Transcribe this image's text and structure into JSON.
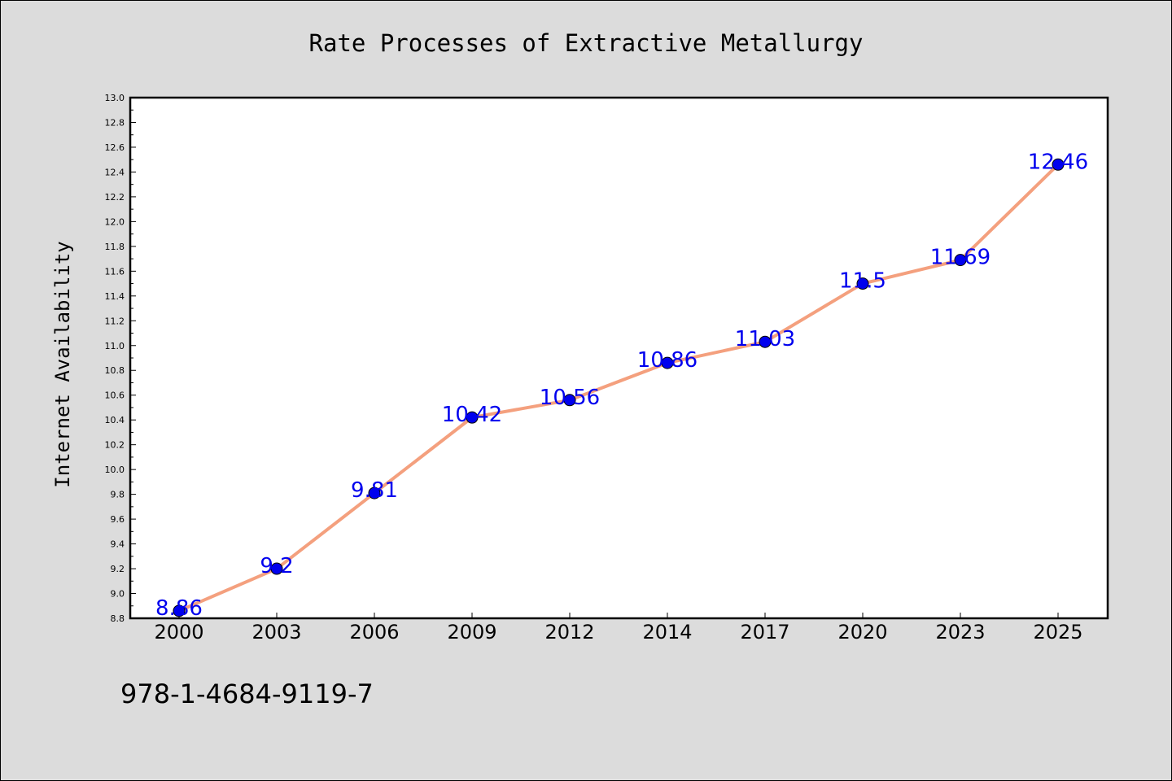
{
  "chart_data": {
    "type": "line",
    "title": "Rate Processes of Extractive Metallurgy",
    "xlabel": "",
    "ylabel": "Internet Availability",
    "categories": [
      "2000",
      "2003",
      "2006",
      "2009",
      "2012",
      "2014",
      "2017",
      "2020",
      "2023",
      "2025"
    ],
    "series": [
      {
        "values": [
          8.86,
          9.2,
          9.81,
          10.42,
          10.56,
          10.86,
          11.03,
          11.5,
          11.69,
          12.46
        ],
        "labels": [
          "8.86",
          "9.2",
          "9.81",
          "10.42",
          "10.56",
          "10.86",
          "11.03",
          "11.5",
          "11.69",
          "12.46"
        ],
        "line_color": "#f4a07e",
        "marker_color": "#0000ee",
        "label_color": "#0000ee"
      }
    ],
    "ylim": [
      8.8,
      13.0
    ],
    "yticks": [
      "8.8",
      "9.0",
      "9.2",
      "9.4",
      "9.6",
      "9.8",
      "10.0",
      "10.2",
      "10.4",
      "10.6",
      "10.8",
      "11.0",
      "11.2",
      "11.4",
      "11.6",
      "11.8",
      "12.0",
      "12.2",
      "12.4",
      "12.6",
      "12.8",
      "13.0"
    ],
    "grid": false,
    "legend": "none"
  },
  "footer": {
    "isbn": "978-1-4684-9119-7"
  },
  "colors": {
    "background": "#dcdcdc",
    "plot_background": "#ffffff",
    "axis": "#000000"
  }
}
